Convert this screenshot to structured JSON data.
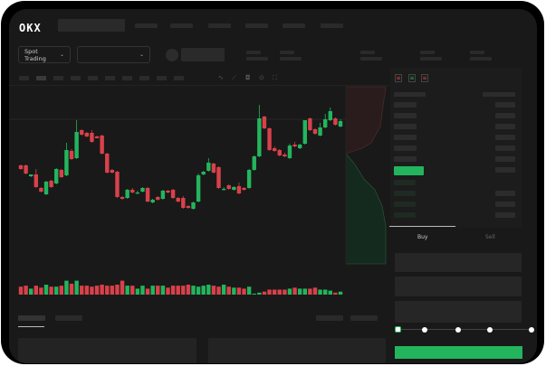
{
  "header": {
    "logo": "OKX",
    "market_select": "Spot Trading"
  },
  "order_panel": {
    "tabs": [
      "Buy",
      "Sell"
    ],
    "slider_level": 0
  },
  "colors": {
    "up": "#23b55d",
    "down": "#d9414a",
    "background": "#191919",
    "buy_button": "#23b55d"
  },
  "icons": [
    "chevron-down-icon",
    "avatar-icon",
    "indicator-icon",
    "draw-icon",
    "camera-icon",
    "settings-icon",
    "fullscreen-icon",
    "orderbook-both-icon",
    "orderbook-bids-icon",
    "orderbook-asks-icon"
  ],
  "chart_data": {
    "type": "candlestick",
    "ohlc": [
      [
        118,
        119,
        113,
        114
      ],
      [
        118,
        119,
        108,
        109
      ],
      [
        106,
        108,
        105,
        108
      ],
      [
        108,
        114,
        93,
        94
      ],
      [
        93,
        94,
        88,
        89
      ],
      [
        86,
        101,
        85,
        100
      ],
      [
        101,
        102,
        93,
        94
      ],
      [
        98,
        115,
        97,
        114
      ],
      [
        113,
        114,
        104,
        105
      ],
      [
        107,
        143,
        106,
        135
      ],
      [
        134,
        136,
        124,
        125
      ],
      [
        126,
        168,
        125,
        155
      ],
      [
        157,
        158,
        151,
        152
      ],
      [
        154,
        155,
        149,
        150
      ],
      [
        154,
        157,
        143,
        144
      ],
      [
        150,
        151,
        148,
        148
      ],
      [
        151,
        152,
        130,
        131
      ],
      [
        131,
        132,
        109,
        110
      ],
      [
        113,
        114,
        109,
        110
      ],
      [
        111,
        112,
        82,
        83
      ],
      [
        83,
        84,
        80,
        81
      ],
      [
        82,
        92,
        81,
        91
      ],
      [
        91,
        93,
        87,
        88
      ],
      [
        88,
        90,
        86,
        88
      ],
      [
        89,
        94,
        88,
        93
      ],
      [
        93,
        94,
        77,
        78
      ],
      [
        77,
        81,
        76,
        80
      ],
      [
        83,
        84,
        79,
        80
      ],
      [
        81,
        91,
        80,
        90
      ],
      [
        90,
        91,
        87,
        88
      ],
      [
        91,
        92,
        81,
        82
      ],
      [
        82,
        83,
        77,
        78
      ],
      [
        82,
        84,
        70,
        71
      ],
      [
        73,
        74,
        70,
        71
      ],
      [
        70,
        78,
        69,
        77
      ],
      [
        78,
        109,
        77,
        107
      ],
      [
        108,
        112,
        107,
        111
      ],
      [
        112,
        126,
        111,
        121
      ],
      [
        120,
        121,
        109,
        110
      ],
      [
        116,
        117,
        92,
        93
      ],
      [
        92,
        94,
        90,
        92
      ],
      [
        96,
        97,
        91,
        92
      ],
      [
        91,
        95,
        90,
        94
      ],
      [
        95,
        99,
        86,
        87
      ],
      [
        93,
        94,
        90,
        91
      ],
      [
        93,
        114,
        92,
        113
      ],
      [
        113,
        129,
        112,
        128
      ],
      [
        128,
        185,
        127,
        170
      ],
      [
        172,
        173,
        158,
        159
      ],
      [
        159,
        160,
        134,
        135
      ],
      [
        137,
        139,
        133,
        134
      ],
      [
        135,
        136,
        128,
        129
      ],
      [
        130,
        132,
        127,
        128
      ],
      [
        126,
        142,
        125,
        140
      ],
      [
        141,
        144,
        138,
        139
      ],
      [
        137,
        142,
        136,
        141
      ],
      [
        142,
        168,
        141,
        168
      ],
      [
        170,
        171,
        156,
        157
      ],
      [
        158,
        159,
        152,
        153
      ],
      [
        151,
        165,
        150,
        160
      ],
      [
        160,
        175,
        159,
        169
      ],
      [
        168,
        182,
        167,
        178
      ],
      [
        170,
        171,
        162,
        163
      ],
      [
        161,
        169,
        160,
        167
      ]
    ],
    "volume": [
      8,
      9,
      6,
      9,
      7,
      10,
      8,
      8,
      9,
      14,
      11,
      14,
      9,
      9,
      8,
      9,
      10,
      9,
      9,
      10,
      14,
      9,
      9,
      6,
      9,
      6,
      9,
      9,
      9,
      7,
      9,
      9,
      9,
      10,
      9,
      8,
      9,
      10,
      9,
      8,
      10,
      8,
      7,
      7,
      6,
      8,
      1,
      2,
      3,
      5,
      5,
      5,
      5,
      6,
      7,
      6,
      6,
      6,
      7,
      5,
      5,
      4,
      2,
      3
    ],
    "grid": false
  }
}
